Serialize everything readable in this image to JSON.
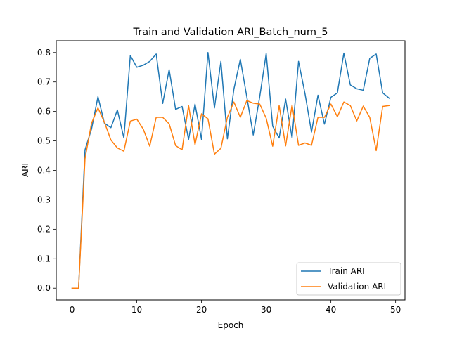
{
  "chart_data": {
    "type": "line",
    "title": "Train and Validation ARI_Batch_num_5",
    "xlabel": "Epoch",
    "ylabel": "ARI",
    "xlim": [
      -2.45,
      51.45
    ],
    "ylim": [
      -0.04,
      0.84
    ],
    "x_ticks": [
      0,
      10,
      20,
      30,
      40,
      50
    ],
    "y_ticks": [
      0.0,
      0.1,
      0.2,
      0.3,
      0.4,
      0.5,
      0.6,
      0.7,
      0.8
    ],
    "x_tick_labels": [
      "0",
      "10",
      "20",
      "30",
      "40",
      "50"
    ],
    "y_tick_labels": [
      "0.0",
      "0.1",
      "0.2",
      "0.3",
      "0.4",
      "0.5",
      "0.6",
      "0.7",
      "0.8"
    ],
    "grid": false,
    "legend_position": "lower-right",
    "x": [
      0,
      1,
      2,
      3,
      4,
      5,
      6,
      7,
      8,
      9,
      10,
      11,
      12,
      13,
      14,
      15,
      16,
      17,
      18,
      19,
      20,
      21,
      22,
      23,
      24,
      25,
      26,
      27,
      28,
      29,
      30,
      31,
      32,
      33,
      34,
      35,
      36,
      37,
      38,
      39,
      40,
      41,
      42,
      43,
      44,
      45,
      46,
      47,
      48,
      49
    ],
    "series": [
      {
        "name": "Train ARI",
        "color": "#1f77b4",
        "values": [
          0.0,
          0.0,
          0.47,
          0.54,
          0.65,
          0.56,
          0.545,
          0.605,
          0.51,
          0.79,
          0.75,
          0.757,
          0.77,
          0.795,
          0.627,
          0.742,
          0.607,
          0.617,
          0.505,
          0.625,
          0.505,
          0.8,
          0.612,
          0.77,
          0.507,
          0.675,
          0.777,
          0.65,
          0.52,
          0.65,
          0.797,
          0.55,
          0.51,
          0.642,
          0.51,
          0.77,
          0.66,
          0.53,
          0.655,
          0.557,
          0.648,
          0.663,
          0.798,
          0.69,
          0.677,
          0.672,
          0.78,
          0.795,
          0.663,
          0.645
        ]
      },
      {
        "name": "Validation ARI",
        "color": "#ff7f0e",
        "values": [
          0.0,
          0.0,
          0.44,
          0.56,
          0.612,
          0.563,
          0.503,
          0.476,
          0.465,
          0.567,
          0.574,
          0.54,
          0.482,
          0.58,
          0.58,
          0.558,
          0.484,
          0.47,
          0.62,
          0.487,
          0.592,
          0.575,
          0.455,
          0.475,
          0.58,
          0.632,
          0.58,
          0.637,
          0.628,
          0.625,
          0.577,
          0.482,
          0.62,
          0.483,
          0.622,
          0.485,
          0.493,
          0.485,
          0.58,
          0.58,
          0.625,
          0.582,
          0.632,
          0.62,
          0.568,
          0.618,
          0.58,
          0.467,
          0.617,
          0.62
        ]
      }
    ]
  }
}
